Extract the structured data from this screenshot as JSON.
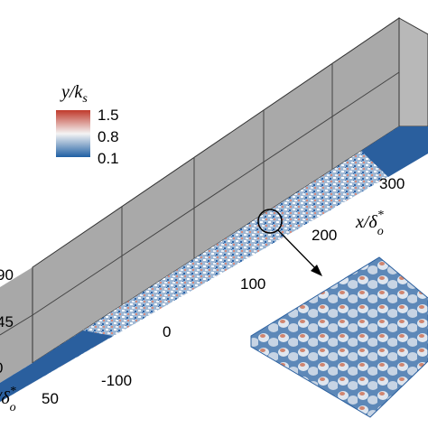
{
  "legend": {
    "title": {
      "main": "y/k",
      "sub": "s"
    },
    "ticks": [
      1.5,
      0.8,
      0.1
    ]
  },
  "x_axis": {
    "label": {
      "main": "x/δ",
      "sup": "*",
      "sub": "o"
    },
    "ticks": [
      -100,
      0,
      100,
      200,
      300
    ]
  },
  "y_axis": {
    "ticks": [
      0,
      45,
      90
    ]
  },
  "z_axis": {
    "label": {
      "main": "z/δ",
      "sup": "*",
      "sub": "o"
    },
    "ticks": [
      50
    ]
  }
}
